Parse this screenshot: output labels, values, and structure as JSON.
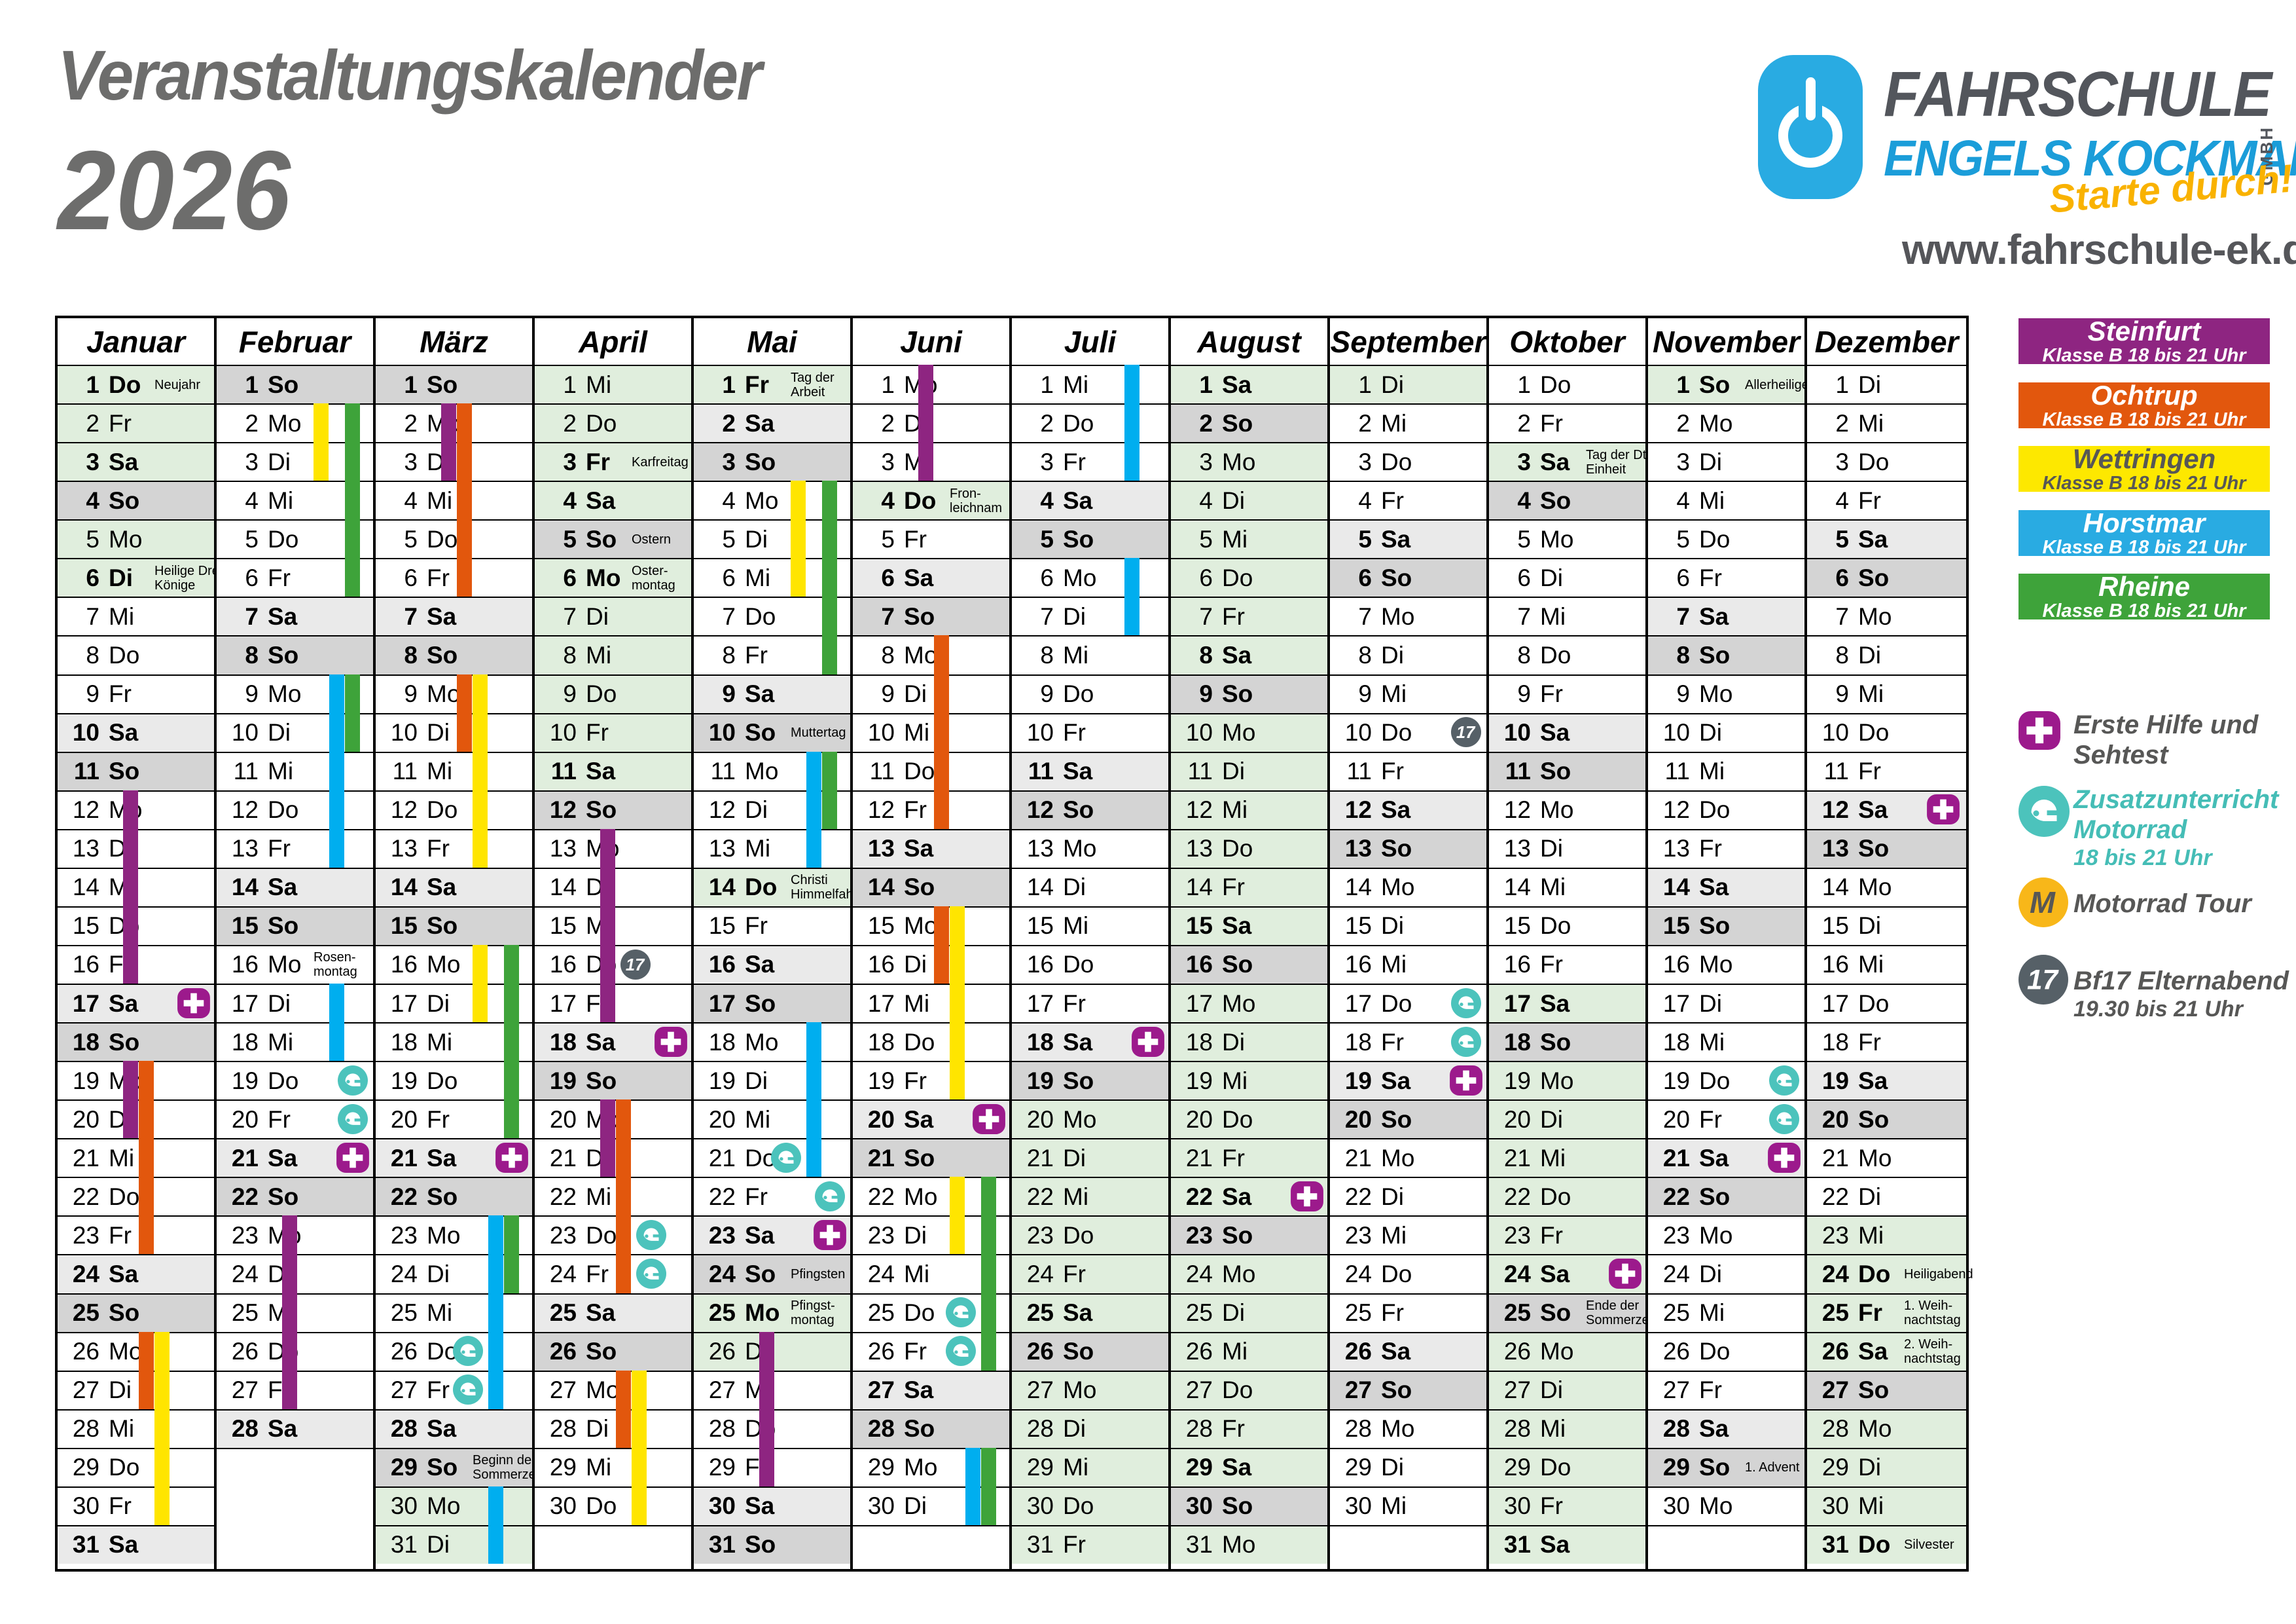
{
  "title": "Veranstaltungskalender",
  "year": "2026",
  "logo": {
    "brand_line1": "FAHRSCHULE",
    "brand_line2": "ENGELS KOCKMANN",
    "brand_suffix": "GMBH",
    "tagline": "Starte durch!",
    "website": "www.fahrschule-ek.de"
  },
  "colors": {
    "title_gray": "#6d6d6c",
    "brand_gray": "#53565c",
    "brand_blue": "#1b9dd9",
    "logo_blue": "#29abe2",
    "tagline_yellow": "#f9b200",
    "row_saturday": "#eaeaea",
    "row_sunday": "#d4d4d4",
    "row_ferien": "#e0eedd",
    "plus_icon": "#9c1a8c",
    "helm_icon": "#4cc3bc",
    "m_icon": "#f8b719",
    "bf17_icon": "#566067",
    "bar_colors": {
      "steinfurt": "#8e2581",
      "ochtrup": "#e2570d",
      "wettringen": "#ffe500",
      "horstmar": "#00aeef",
      "rheine": "#3ea33a"
    }
  },
  "legend": {
    "locations": [
      {
        "key": "steinfurt",
        "name": "Steinfurt",
        "schedule": "Klasse B 18 bis 21 Uhr",
        "color": "#8e2581",
        "text_color": "#ffffff"
      },
      {
        "key": "ochtrup",
        "name": "Ochtrup",
        "schedule": "Klasse B 18 bis 21 Uhr",
        "color": "#e2570d",
        "text_color": "#ffffff"
      },
      {
        "key": "wettringen",
        "name": "Wettringen",
        "schedule": "Klasse B 18 bis 21 Uhr",
        "color": "#fde800",
        "text_color": "#575756"
      },
      {
        "key": "horstmar",
        "name": "Horstmar",
        "schedule": "Klasse B 18 bis 21 Uhr",
        "color": "#29abe2",
        "text_color": "#ffffff"
      },
      {
        "key": "rheine",
        "name": "Rheine",
        "schedule": "Klasse B 18 bis 21 Uhr",
        "color": "#3ea33a",
        "text_color": "#ffffff"
      }
    ],
    "items": [
      {
        "icon": "plus",
        "lines": [
          "Erste Hilfe und",
          "Sehtest"
        ],
        "sub": "",
        "color": "#575756"
      },
      {
        "icon": "helm",
        "lines": [
          "Zusatzunterricht",
          "Motorrad"
        ],
        "sub": "18 bis 21 Uhr",
        "color": "#45bdb6"
      },
      {
        "icon": "m",
        "lines": [
          "Motorrad Tour"
        ],
        "sub": "",
        "color": "#575756"
      },
      {
        "icon": "bf17",
        "lines": [
          "Bf17 Elternabend"
        ],
        "sub": "19.30 bis 21 Uhr",
        "color": "#575756"
      }
    ]
  },
  "calendar": {
    "weekday_labels": [
      "Mo",
      "Di",
      "Mi",
      "Do",
      "Fr",
      "Sa",
      "So"
    ],
    "months": [
      {
        "name": "Januar",
        "days_in_month": 31,
        "first_weekday": "Do",
        "ferien_days": [
          1,
          2,
          3,
          5,
          6
        ],
        "holidays": {
          "1": "Neujahr",
          "6": "Heilige Drei\nKönige"
        },
        "notes": {},
        "icons": {
          "plus": [
            17
          ],
          "helm": [],
          "bf17": []
        },
        "bars": [
          {
            "location": "steinfurt",
            "from": 12,
            "to": 16
          },
          {
            "location": "steinfurt",
            "from": 19,
            "to": 20
          },
          {
            "location": "ochtrup",
            "from": 19,
            "to": 23
          },
          {
            "location": "ochtrup",
            "from": 26,
            "to": 27
          },
          {
            "location": "wettringen",
            "from": 26,
            "to": 30
          }
        ]
      },
      {
        "name": "Februar",
        "days_in_month": 28,
        "first_weekday": "So",
        "ferien_days": [],
        "holidays": {},
        "notes": {
          "16": "Rosen-\nmontag"
        },
        "icons": {
          "plus": [
            21
          ],
          "helm": [
            19,
            20
          ],
          "bf17": []
        },
        "bars": [
          {
            "location": "wettringen",
            "from": 2,
            "to": 3
          },
          {
            "location": "rheine",
            "from": 2,
            "to": 6
          },
          {
            "location": "rheine",
            "from": 9,
            "to": 10
          },
          {
            "location": "horstmar",
            "from": 9,
            "to": 13
          },
          {
            "location": "horstmar",
            "from": 17,
            "to": 18
          },
          {
            "location": "steinfurt",
            "from": 23,
            "to": 27
          }
        ]
      },
      {
        "name": "März",
        "days_in_month": 31,
        "first_weekday": "So",
        "ferien_days": [
          30,
          31
        ],
        "holidays": {},
        "notes": {
          "29": "Beginn der\nSommerzeit"
        },
        "icons": {
          "plus": [
            21
          ],
          "helm": [
            26,
            27
          ],
          "bf17": []
        },
        "bars": [
          {
            "location": "steinfurt",
            "from": 2,
            "to": 3
          },
          {
            "location": "ochtrup",
            "from": 2,
            "to": 6
          },
          {
            "location": "ochtrup",
            "from": 9,
            "to": 10
          },
          {
            "location": "wettringen",
            "from": 9,
            "to": 13
          },
          {
            "location": "wettringen",
            "from": 16,
            "to": 17
          },
          {
            "location": "rheine",
            "from": 16,
            "to": 20
          },
          {
            "location": "rheine",
            "from": 23,
            "to": 24
          },
          {
            "location": "horstmar",
            "from": 23,
            "to": 27
          },
          {
            "location": "horstmar",
            "from": 30,
            "to": 31
          }
        ]
      },
      {
        "name": "April",
        "days_in_month": 30,
        "first_weekday": "Mi",
        "ferien_days": [
          1,
          2,
          3,
          4,
          6,
          7,
          8,
          9,
          10,
          11
        ],
        "holidays": {
          "3": "Karfreitag",
          "6": "Oster-\nmontag"
        },
        "notes": {
          "5": "Ostern"
        },
        "icons": {
          "plus": [
            18
          ],
          "helm": [
            23,
            24
          ],
          "bf17": [
            16
          ]
        },
        "bars": [
          {
            "location": "steinfurt",
            "from": 13,
            "to": 17
          },
          {
            "location": "steinfurt",
            "from": 20,
            "to": 21
          },
          {
            "location": "ochtrup",
            "from": 20,
            "to": 24
          },
          {
            "location": "ochtrup",
            "from": 27,
            "to": 28
          },
          {
            "location": "wettringen",
            "from": 27,
            "to": 30
          }
        ]
      },
      {
        "name": "Mai",
        "days_in_month": 31,
        "first_weekday": "Fr",
        "ferien_days": [
          1,
          14,
          25,
          26
        ],
        "holidays": {
          "1": "Tag der\nArbeit",
          "14": "Christi\nHimmelfahrt",
          "25": "Pfingst-\nmontag"
        },
        "notes": {
          "10": "Muttertag",
          "24": "Pfingsten"
        },
        "icons": {
          "plus": [
            23
          ],
          "helm": [
            21,
            22
          ],
          "bf17": []
        },
        "bars": [
          {
            "location": "wettringen",
            "from": 4,
            "to": 6
          },
          {
            "location": "rheine",
            "from": 4,
            "to": 8
          },
          {
            "location": "rheine",
            "from": 11,
            "to": 12
          },
          {
            "location": "horstmar",
            "from": 11,
            "to": 13
          },
          {
            "location": "horstmar",
            "from": 18,
            "to": 21
          },
          {
            "location": "steinfurt",
            "from": 26,
            "to": 29
          }
        ]
      },
      {
        "name": "Juni",
        "days_in_month": 30,
        "first_weekday": "Mo",
        "ferien_days": [
          4
        ],
        "holidays": {
          "4": "Fron-\nleichnam"
        },
        "notes": {},
        "icons": {
          "plus": [
            20
          ],
          "helm": [
            25,
            26
          ],
          "bf17": []
        },
        "bars": [
          {
            "location": "steinfurt",
            "from": 1,
            "to": 3
          },
          {
            "location": "ochtrup",
            "from": 8,
            "to": 12
          },
          {
            "location": "ochtrup",
            "from": 15,
            "to": 16
          },
          {
            "location": "wettringen",
            "from": 15,
            "to": 19
          },
          {
            "location": "wettringen",
            "from": 22,
            "to": 23
          },
          {
            "location": "rheine",
            "from": 22,
            "to": 26
          },
          {
            "location": "rheine",
            "from": 29,
            "to": 30
          },
          {
            "location": "horstmar",
            "from": 29,
            "to": 30
          }
        ]
      },
      {
        "name": "Juli",
        "days_in_month": 31,
        "first_weekday": "Mi",
        "ferien_days": [
          20,
          21,
          22,
          23,
          24,
          25,
          27,
          28,
          29,
          30,
          31
        ],
        "holidays": {},
        "notes": {},
        "icons": {
          "plus": [
            18
          ],
          "helm": [],
          "bf17": []
        },
        "bars": [
          {
            "location": "horstmar",
            "from": 1,
            "to": 3
          },
          {
            "location": "horstmar",
            "from": 6,
            "to": 7
          }
        ]
      },
      {
        "name": "August",
        "days_in_month": 31,
        "first_weekday": "Sa",
        "ferien_days": [
          1,
          3,
          4,
          5,
          6,
          7,
          8,
          10,
          11,
          12,
          13,
          14,
          15,
          17,
          18,
          19,
          20,
          21,
          22,
          24,
          25,
          26,
          27,
          28,
          29,
          31
        ],
        "holidays": {},
        "notes": {},
        "icons": {
          "plus": [
            22
          ],
          "helm": [],
          "bf17": []
        },
        "bars": []
      },
      {
        "name": "September",
        "days_in_month": 30,
        "first_weekday": "Di",
        "ferien_days": [
          1
        ],
        "holidays": {},
        "notes": {},
        "icons": {
          "plus": [
            19
          ],
          "helm": [
            17,
            18
          ],
          "bf17": [
            10
          ]
        },
        "bars": []
      },
      {
        "name": "Oktober",
        "days_in_month": 31,
        "first_weekday": "Do",
        "ferien_days": [
          3,
          17,
          19,
          20,
          21,
          22,
          23,
          24,
          26,
          27,
          28,
          29,
          30,
          31
        ],
        "holidays": {
          "3": "Tag der Dt.\nEinheit"
        },
        "notes": {
          "25": "Ende der\nSommerzeit"
        },
        "icons": {
          "plus": [
            24
          ],
          "helm": [],
          "bf17": []
        },
        "bars": []
      },
      {
        "name": "November",
        "days_in_month": 30,
        "first_weekday": "So",
        "ferien_days": [
          1
        ],
        "holidays": {
          "1": "Allerheiligen"
        },
        "notes": {
          "29": "1. Advent"
        },
        "icons": {
          "plus": [
            21
          ],
          "helm": [
            19,
            20
          ],
          "bf17": []
        },
        "bars": []
      },
      {
        "name": "Dezember",
        "days_in_month": 31,
        "first_weekday": "Di",
        "ferien_days": [
          23,
          24,
          25,
          26,
          28,
          29,
          30,
          31
        ],
        "holidays": {
          "24": "Heiligabend",
          "25": "1. Weih-\nnachtstag",
          "26": "2. Weih-\nnachtstag",
          "31": "Silvester"
        },
        "notes": {},
        "icons": {
          "plus": [
            12
          ],
          "helm": [],
          "bf17": []
        },
        "bars": []
      }
    ]
  }
}
